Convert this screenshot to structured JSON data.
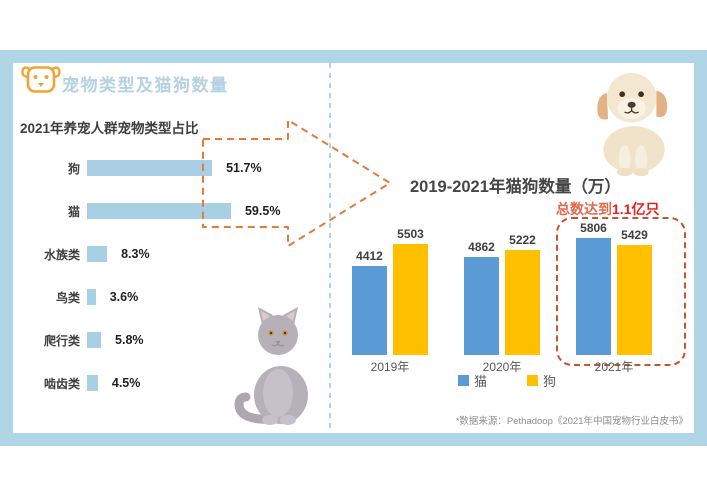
{
  "header": {
    "icon": "dog-face-icon",
    "title": "宠物类型及猫狗数量"
  },
  "chart_data": [
    {
      "type": "bar",
      "orientation": "horizontal",
      "title": "2021年养宠人群宠物类型占比",
      "categories": [
        "狗",
        "猫",
        "水族类",
        "鸟类",
        "爬行类",
        "啮齿类"
      ],
      "values": [
        51.7,
        59.5,
        8.3,
        3.6,
        5.8,
        4.5
      ],
      "value_suffix": "%",
      "bar_color": "#A9CFE4",
      "xlim": [
        0,
        70
      ],
      "grid": false,
      "legend": false
    },
    {
      "type": "bar",
      "orientation": "vertical",
      "title": "2019-2021年猫狗数量（万）",
      "categories": [
        "2019年",
        "2020年",
        "2021年"
      ],
      "series": [
        {
          "name": "猫",
          "color": "#5B9BD5",
          "values": [
            4412,
            4862,
            5806
          ]
        },
        {
          "name": "狗",
          "color": "#FFC000",
          "values": [
            5503,
            5222,
            5429
          ]
        }
      ],
      "ylim": [
        0,
        6000
      ],
      "grid": false,
      "legend_position": "bottom",
      "annotation": {
        "prefix": "总数达到",
        "highlight": "1.1亿只",
        "applies_to": "2021年",
        "box_style": "dashed-rounded-rect"
      }
    }
  ],
  "footer": {
    "source": "*数据来源：Pethadoop《2021年中国宠物行业白皮书》"
  },
  "decor": {
    "left_photo": "gray-cat-photo",
    "right_photo": "puppy-photo",
    "arrow": "dashed-arrow-right-icon",
    "divider": "dashed-vertical-divider"
  },
  "colors": {
    "frame": "#AFD5E7",
    "header_title": "#B5D1E2",
    "header_icon": "#F0A434",
    "arrow": "#E07B3A",
    "divider": "#9FC6DA",
    "annotation_prefix": "#E06A4E",
    "annotation_highlight": "#E51D1D",
    "highlight_box": "#C95330",
    "cat_series": "#5B9BD5",
    "dog_series": "#FFC000",
    "left_bar": "#A9CFE4"
  }
}
